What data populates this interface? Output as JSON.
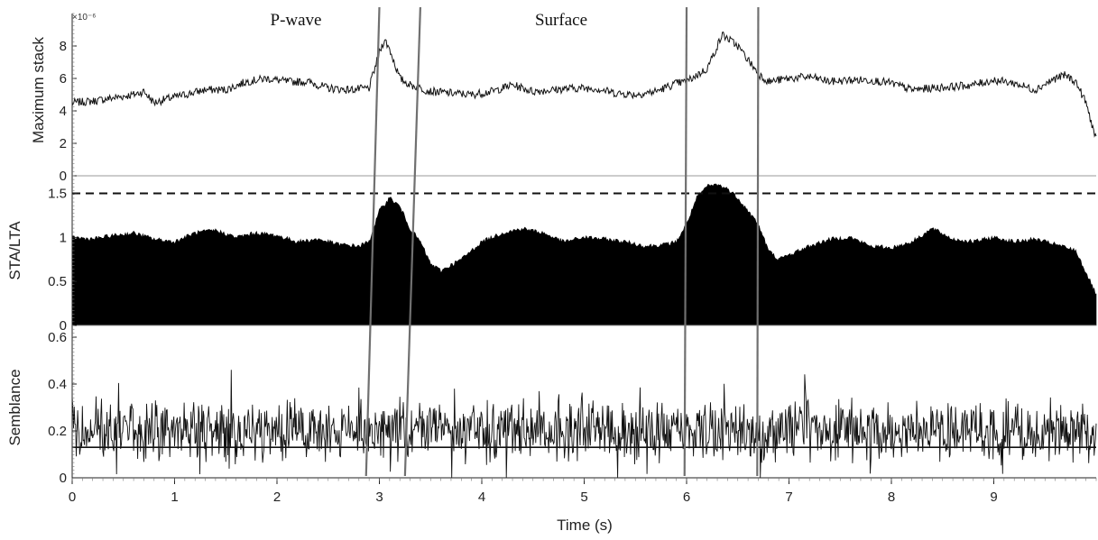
{
  "chart_data": [
    {
      "type": "line",
      "panel": "top",
      "ylabel": "Maximum stack",
      "y_exponent_label": "×10⁻⁶",
      "ylim": [
        0,
        10
      ],
      "yticks": [
        "0",
        "2",
        "4",
        "6",
        "8"
      ],
      "series": [
        {
          "x": [
            0.0,
            0.2,
            0.4,
            0.6,
            0.7,
            0.8,
            0.9,
            1.1,
            1.3,
            1.5,
            1.7,
            1.9,
            2.1,
            2.3,
            2.5,
            2.7,
            2.9,
            3.0,
            3.05,
            3.1,
            3.2,
            3.3,
            3.5,
            3.7,
            3.9,
            4.1,
            4.3,
            4.5,
            4.7,
            4.9,
            5.1,
            5.3,
            5.5,
            5.7,
            5.9,
            6.0,
            6.2,
            6.35,
            6.5,
            6.7,
            6.8,
            7.0,
            7.2,
            7.4,
            7.6,
            7.8,
            8.0,
            8.2,
            8.4,
            8.6,
            8.8,
            9.0,
            9.2,
            9.4,
            9.6,
            9.7,
            9.8,
            9.9,
            10.0
          ],
          "values": [
            4.5,
            4.6,
            4.8,
            5.0,
            5.2,
            4.5,
            4.7,
            5.0,
            5.3,
            5.3,
            5.8,
            6.0,
            5.8,
            5.8,
            5.4,
            5.3,
            5.4,
            7.6,
            8.4,
            7.8,
            6.0,
            5.6,
            5.2,
            5.1,
            5.0,
            5.2,
            5.6,
            5.2,
            5.3,
            5.4,
            5.4,
            5.1,
            5.0,
            5.2,
            5.7,
            5.8,
            6.6,
            8.7,
            8.0,
            6.3,
            5.8,
            6.0,
            6.1,
            5.8,
            5.9,
            5.9,
            5.7,
            5.3,
            5.4,
            5.5,
            5.6,
            5.9,
            5.7,
            5.3,
            6.0,
            6.2,
            5.8,
            4.5,
            2.2
          ]
        }
      ]
    },
    {
      "type": "area",
      "panel": "middle",
      "ylabel": "STA/LTA",
      "ylim": [
        0,
        1.7
      ],
      "yticks": [
        "0",
        "0.5",
        "1",
        "1.5"
      ],
      "threshold": 1.5,
      "series": [
        {
          "x": [
            0.0,
            0.2,
            0.4,
            0.6,
            0.8,
            1.0,
            1.2,
            1.4,
            1.6,
            1.8,
            2.0,
            2.2,
            2.4,
            2.6,
            2.8,
            2.9,
            3.0,
            3.1,
            3.2,
            3.3,
            3.4,
            3.5,
            3.6,
            3.8,
            4.0,
            4.2,
            4.4,
            4.6,
            4.8,
            5.0,
            5.2,
            5.4,
            5.6,
            5.8,
            5.9,
            6.0,
            6.1,
            6.2,
            6.3,
            6.4,
            6.5,
            6.6,
            6.7,
            6.8,
            6.9,
            7.0,
            7.2,
            7.4,
            7.6,
            7.8,
            8.0,
            8.2,
            8.4,
            8.6,
            8.8,
            9.0,
            9.2,
            9.4,
            9.6,
            9.8,
            9.9,
            10.0
          ],
          "values": [
            1.0,
            0.98,
            1.02,
            1.05,
            0.98,
            0.95,
            1.05,
            1.08,
            1.0,
            1.05,
            1.02,
            0.95,
            0.98,
            0.92,
            0.9,
            0.95,
            1.3,
            1.45,
            1.35,
            1.1,
            0.95,
            0.7,
            0.62,
            0.75,
            0.95,
            1.05,
            1.1,
            1.05,
            0.95,
            1.0,
            0.98,
            0.95,
            0.9,
            0.92,
            0.95,
            1.15,
            1.45,
            1.58,
            1.6,
            1.55,
            1.45,
            1.3,
            1.15,
            0.85,
            0.75,
            0.8,
            0.9,
            0.98,
            1.0,
            0.9,
            0.88,
            0.95,
            1.1,
            0.98,
            0.95,
            1.0,
            0.95,
            0.98,
            0.92,
            0.85,
            0.6,
            0.35
          ]
        }
      ]
    },
    {
      "type": "line",
      "panel": "bottom",
      "ylabel": "Semblance",
      "xlabel": "Time (s)",
      "ylim": [
        0,
        0.65
      ],
      "yticks": [
        "0",
        "0.2",
        "0.4",
        "0.6"
      ],
      "xticks": [
        "0",
        "1",
        "2",
        "3",
        "4",
        "5",
        "6",
        "7",
        "8",
        "9"
      ],
      "xlim": [
        0,
        10
      ],
      "reference_level": 0.13,
      "mean_level": 0.2,
      "noise_amplitude": 0.1
    }
  ],
  "annotations": {
    "p_wave": "P-wave",
    "surface": "Surface"
  },
  "colors": {
    "trace": "#111111",
    "fill": "#000000",
    "divider": "#707070",
    "axis": "#222222"
  }
}
